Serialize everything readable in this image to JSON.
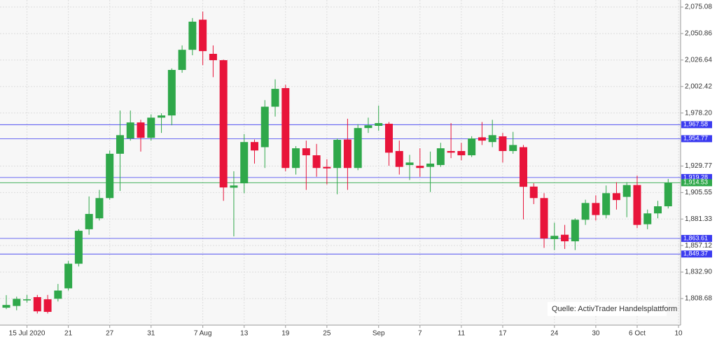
{
  "chart_data": {
    "type": "candlestick",
    "categories": [
      null,
      null,
      "15 Jul 2020",
      null,
      null,
      null,
      "21",
      null,
      null,
      null,
      "27",
      null,
      null,
      null,
      "31",
      null,
      null,
      null,
      null,
      "7 Aug",
      null,
      null,
      null,
      "13",
      null,
      null,
      null,
      "19",
      null,
      null,
      null,
      "25",
      null,
      null,
      null,
      null,
      "Sep",
      null,
      null,
      null,
      "7",
      null,
      null,
      null,
      "11",
      null,
      null,
      null,
      "17",
      null,
      null,
      null,
      null,
      "24",
      null,
      null,
      null,
      "30",
      null,
      null,
      null,
      "6 Oct",
      null,
      null,
      null,
      "10"
    ],
    "series": {
      "open": [
        1800.3,
        1801.9,
        1807,
        1810,
        1808,
        1808.5,
        1818,
        1840.5,
        1872,
        1882,
        1900.5,
        1941,
        1955,
        1969.6,
        1955.6,
        1974,
        1976,
        2017.6,
        2036,
        2063.5,
        2032.3,
        2026.5,
        1910,
        1914,
        1951.7,
        1947,
        1984,
        2001,
        1928,
        1946,
        1939.6,
        1929,
        1928,
        1954,
        1928,
        1964.5,
        1966.5,
        1968.4,
        1943.5,
        1930.7,
        1930,
        1929,
        1930.7,
        1943.5,
        1943.5,
        1939.6,
        1956,
        1951.7,
        1956.9,
        1943.5,
        1947,
        1911,
        1900.5,
        1863,
        1867,
        1861,
        1880.7,
        1896,
        1885,
        1905,
        1901.6,
        1912.4,
        1876.6,
        1886.5,
        1893,
        null
      ],
      "high": [
        1811.8,
        1810.4,
        1812,
        1812,
        1812,
        1822,
        1843,
        1872,
        1902,
        1908,
        1944,
        1980.5,
        1980.5,
        1972,
        1977,
        1978,
        2019,
        2040,
        2065,
        2070.9,
        2040,
        2027,
        1925,
        1959,
        1954,
        1990,
        2009,
        2004,
        1948,
        1953,
        1950,
        1936,
        1955,
        1973,
        1968,
        1974,
        1985,
        1970,
        1953,
        1940,
        1946,
        1943,
        1951,
        1969,
        1951,
        1957,
        1970,
        1972,
        1960,
        1961,
        1949,
        1914,
        1905,
        1878,
        1876,
        1882,
        1899,
        1903,
        1912,
        1915,
        1915,
        1921,
        1890,
        1898,
        1918,
        null
      ],
      "low": [
        1799,
        1798,
        1805,
        1795,
        1795,
        1806,
        1816,
        1838,
        1867,
        1880,
        1899,
        1907,
        1953,
        1943,
        1953,
        1960,
        1967,
        2015,
        2031,
        2022,
        2011,
        1898,
        1865.5,
        1905,
        1932,
        1928,
        1975,
        1925,
        1922,
        1908,
        1920,
        1913,
        1904,
        1908,
        1926,
        1960,
        1962,
        1930,
        1922,
        1917,
        1920,
        1906,
        1929,
        1937,
        1935,
        1938,
        1949,
        1947,
        1933,
        1941,
        1881,
        1895,
        1855,
        1853,
        1854,
        1853,
        1876,
        1880,
        1882,
        1890,
        1883,
        1873,
        1872,
        1882,
        1891,
        null
      ],
      "close": [
        1802.8,
        1808.4,
        1808,
        1797,
        1796.5,
        1816,
        1840.5,
        1870.6,
        1886,
        1900.5,
        1941,
        1958,
        1969.6,
        1955.6,
        1974,
        1976,
        2017.6,
        2036,
        2061.7,
        2034.8,
        2026.5,
        1910.2,
        1912,
        1951.7,
        1944,
        1984,
        2000.3,
        1928,
        1946,
        1939.6,
        1928,
        1927.6,
        1953.7,
        1928,
        1964.5,
        1967,
        1969,
        1942,
        1929,
        1933,
        1928,
        1932,
        1946,
        1942,
        1939.6,
        1955,
        1953,
        1958,
        1943.5,
        1949,
        1910.8,
        1900.5,
        1863.6,
        1866,
        1861,
        1880.7,
        1896,
        1885,
        1905,
        1898.7,
        1912.4,
        1876,
        1886.5,
        1893,
        1914.5,
        null
      ]
    },
    "up_color": "#2fa84a",
    "down_color": "#e8143a",
    "ylim": [
      1784.4,
      2081.5
    ],
    "yticks": [
      {
        "value": 2075.08,
        "label": "2,075.08"
      },
      {
        "value": 2050.86,
        "label": "2,050.86"
      },
      {
        "value": 2026.64,
        "label": "2,026.64"
      },
      {
        "value": 2002.42,
        "label": "2,002.42"
      },
      {
        "value": 1978.2,
        "label": "1,978.20"
      },
      {
        "value": 1929.77,
        "label": "1,929.77"
      },
      {
        "value": 1905.55,
        "label": "1,905.55"
      },
      {
        "value": 1881.33,
        "label": "1,881.33"
      },
      {
        "value": 1857.12,
        "label": "1,857.12"
      },
      {
        "value": 1832.9,
        "label": "1,832.90"
      },
      {
        "value": 1808.68,
        "label": "1,808.68"
      }
    ],
    "grid": true,
    "levels": [
      {
        "value": 1967.58,
        "label": "1,967.58",
        "color": "#3b3bf0"
      },
      {
        "value": 1954.77,
        "label": "1,954.77",
        "color": "#3b3bf0"
      },
      {
        "value": 1919.28,
        "label": "1,919.28",
        "color": "#3b3bf0"
      },
      {
        "value": 1914.53,
        "label": "1,914.53",
        "color": "#2fa84a"
      },
      {
        "value": 1863.61,
        "label": "1,863.61",
        "color": "#3b3bf0"
      },
      {
        "value": 1849.37,
        "label": "1,849.37",
        "color": "#3b3bf0"
      }
    ],
    "annotation": "Quelle: ActivTrader Handelsplattform"
  }
}
